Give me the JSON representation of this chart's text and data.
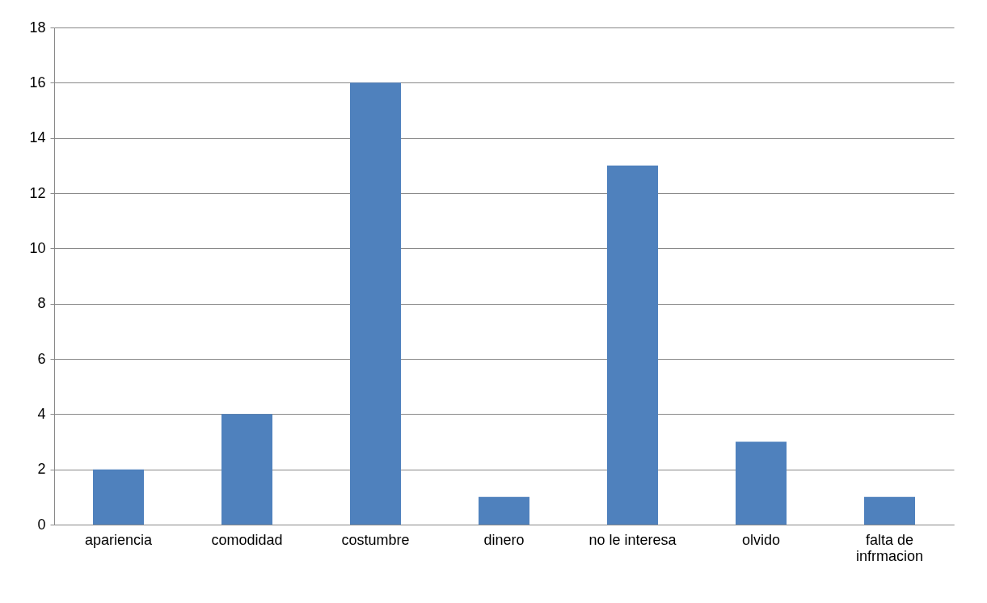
{
  "chart_data": {
    "type": "bar",
    "categories": [
      "apariencia",
      "comodidad",
      "costumbre",
      "dinero",
      "no le interesa",
      "olvido",
      "falta de\ninfrmacion"
    ],
    "values": [
      2,
      4,
      16,
      1,
      13,
      3,
      1
    ],
    "color": "#4f81bd",
    "ylim": [
      0,
      18
    ],
    "yticks": [
      0,
      2,
      4,
      6,
      8,
      10,
      12,
      14,
      16,
      18
    ],
    "grid": "y"
  }
}
